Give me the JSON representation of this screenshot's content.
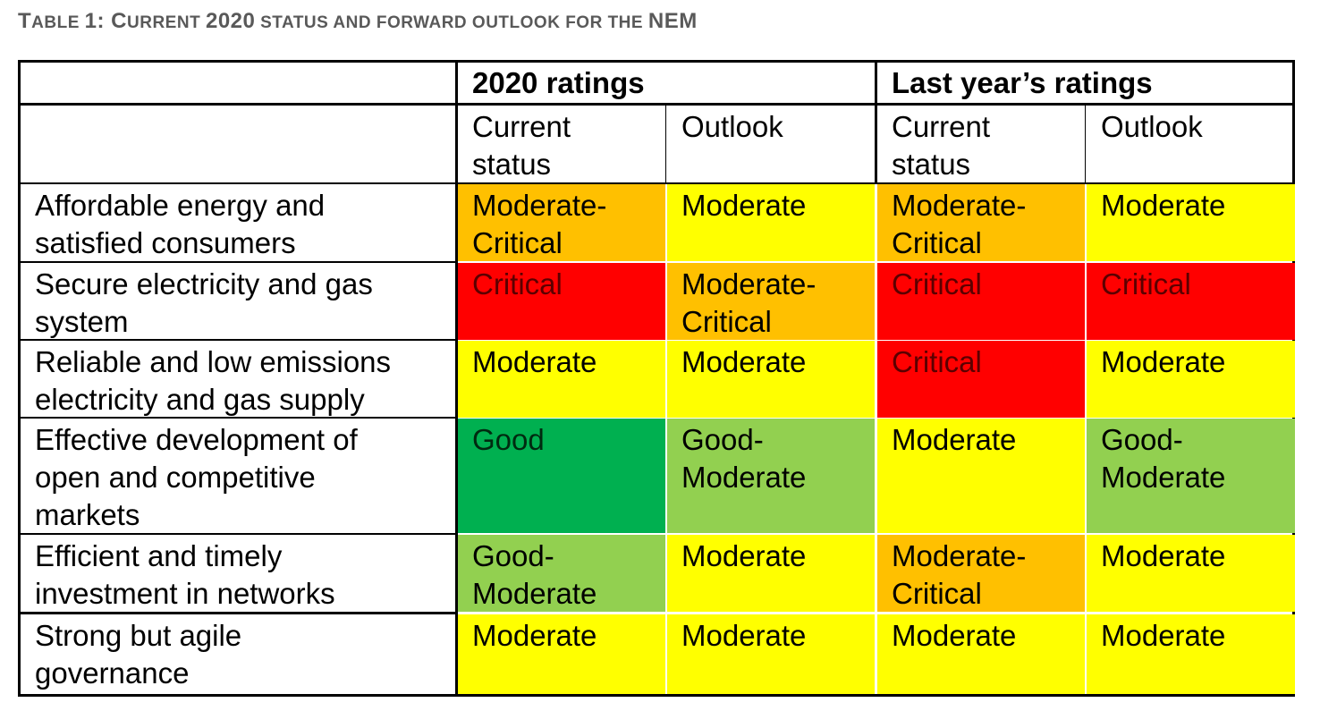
{
  "caption": {
    "prefix_large": "T",
    "text_1": "ABLE ",
    "num_1": "1:",
    "text_2": " C",
    "text_3": "URRENT ",
    "num_2": "2020",
    "text_4": " STATUS AND FORWARD OUTLOOK FOR THE ",
    "text_5": "NEM"
  },
  "header": {
    "group_1": "2020 ratings",
    "group_2": "Last year’s ratings",
    "sub": [
      "Current\nstatus",
      "Outlook",
      "Current\nstatus",
      "Outlook"
    ]
  },
  "rows": [
    {
      "label": "Affordable energy and\nsatisfied consumers",
      "ratings": [
        "Moderate-\nCritical",
        "Moderate",
        "Moderate-\nCritical",
        "Moderate"
      ]
    },
    {
      "label": "Secure electricity and gas\nsystem",
      "ratings": [
        "Critical",
        "Moderate-\nCritical",
        "Critical",
        "Critical"
      ]
    },
    {
      "label": "Reliable and low emissions\nelectricity and gas supply",
      "ratings": [
        "Moderate",
        "Moderate",
        "Critical",
        "Moderate"
      ]
    },
    {
      "label": "Effective development of\nopen and competitive\nmarkets",
      "ratings": [
        "Good",
        "Good-\nModerate",
        "Moderate",
        "Good-\nModerate"
      ]
    },
    {
      "label": "Efficient and timely\ninvestment in networks",
      "ratings": [
        "Good-\nModerate",
        "Moderate",
        "Moderate-\nCritical",
        "Moderate"
      ]
    },
    {
      "label": "Strong but agile\ngovernance",
      "ratings": [
        "Moderate",
        "Moderate",
        "Moderate",
        "Moderate"
      ]
    }
  ],
  "colors": {
    "Moderate": "#ffff00",
    "Moderate-Critical": "#ffc000",
    "Critical": "#ff0000",
    "Good": "#00b050",
    "Good-Moderate": "#92d050"
  }
}
